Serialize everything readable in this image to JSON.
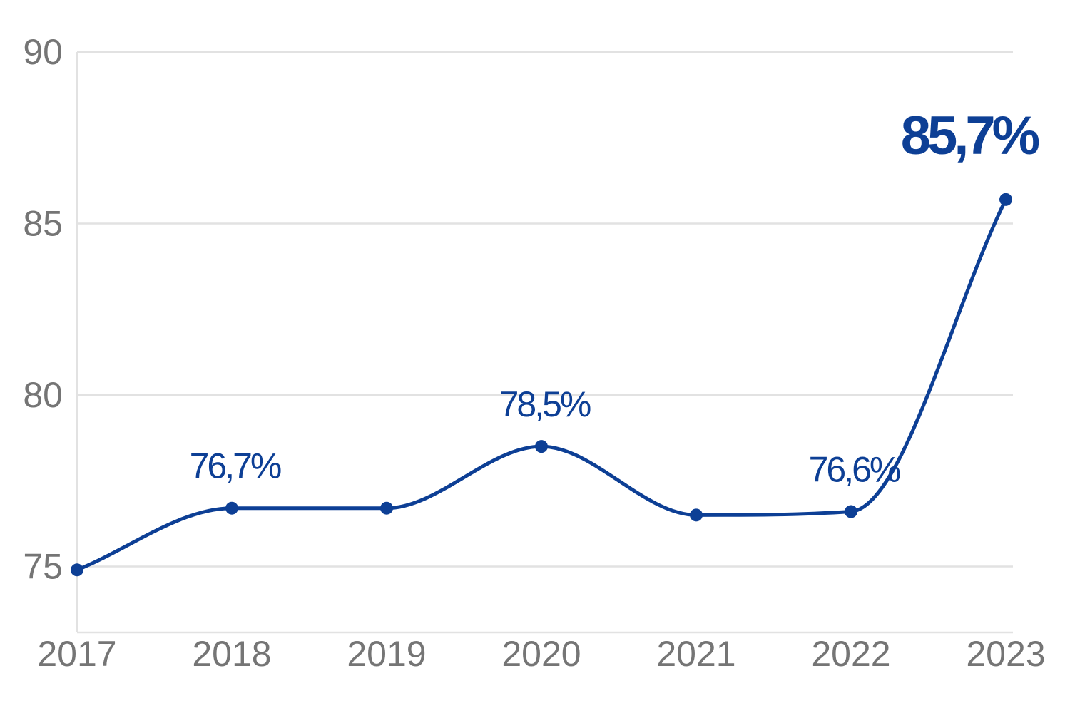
{
  "chart_data": {
    "type": "line",
    "x": [
      "2017",
      "2018",
      "2019",
      "2020",
      "2021",
      "2022",
      "2023"
    ],
    "series": [
      {
        "values": [
          74.9,
          76.7,
          76.7,
          78.5,
          76.5,
          76.6,
          85.7
        ]
      }
    ],
    "data_labels": [
      {
        "index": 1,
        "text": "76,7%"
      },
      {
        "index": 3,
        "text": "78,5%"
      },
      {
        "index": 5,
        "text": "76,6%"
      },
      {
        "index": 6,
        "text": "85,7%",
        "emphasis": true
      }
    ],
    "yticks": [
      "75",
      "80",
      "85",
      "90"
    ],
    "ylim": [
      73,
      90
    ],
    "grid": true,
    "line_color": "#0d3f95",
    "grid_color": "#e2e2e2",
    "tick_color": "#757575"
  }
}
